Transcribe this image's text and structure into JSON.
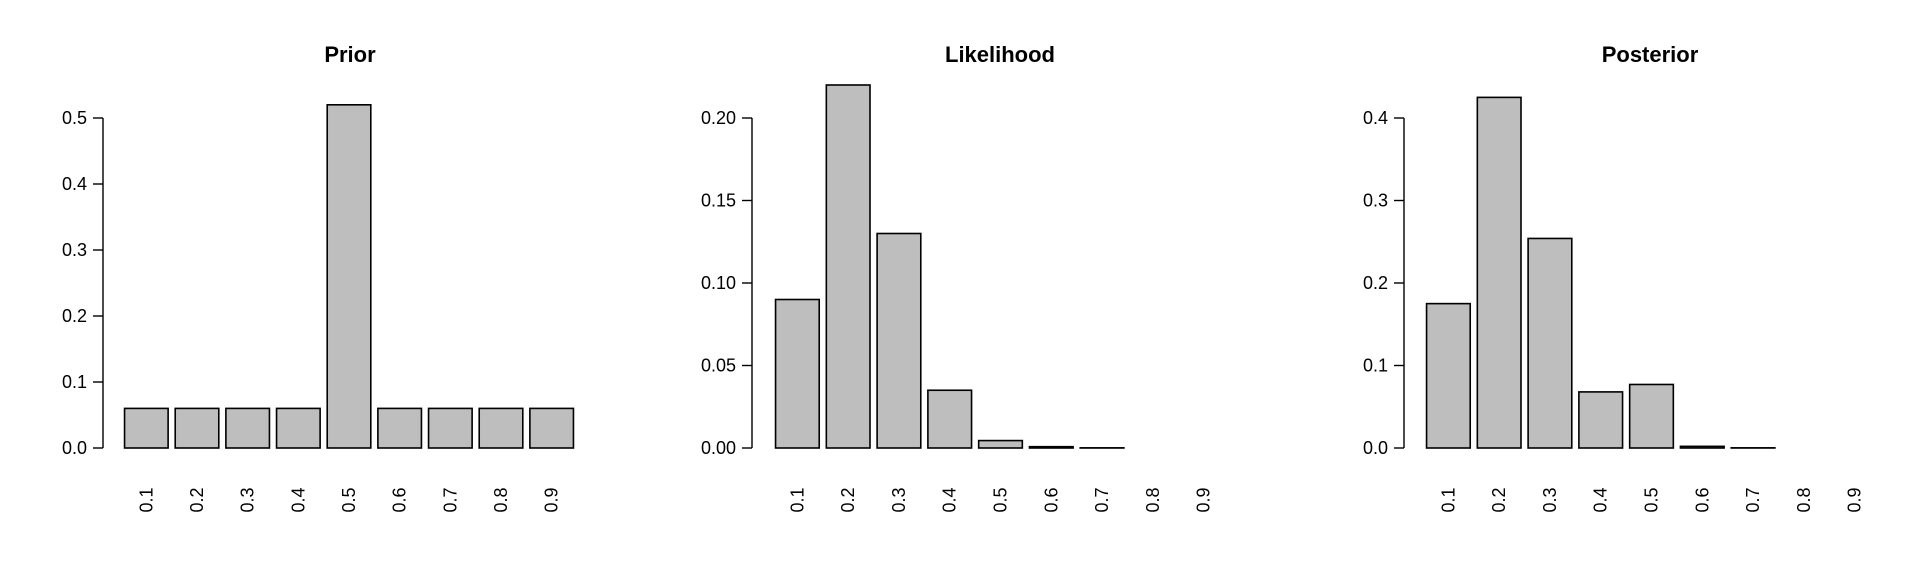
{
  "chart_data": [
    {
      "type": "bar",
      "title": "Prior",
      "categories": [
        "0.1",
        "0.2",
        "0.3",
        "0.4",
        "0.5",
        "0.6",
        "0.7",
        "0.8",
        "0.9"
      ],
      "values": [
        0.06,
        0.06,
        0.06,
        0.06,
        0.52,
        0.06,
        0.06,
        0.06,
        0.06
      ],
      "ylim": [
        0,
        0.5
      ],
      "yticks": [
        "0.0",
        "0.1",
        "0.2",
        "0.3",
        "0.4",
        "0.5"
      ],
      "bar_color": "#bebebe"
    },
    {
      "type": "bar",
      "title": "Likelihood",
      "categories": [
        "0.1",
        "0.2",
        "0.3",
        "0.4",
        "0.5",
        "0.6",
        "0.7",
        "0.8",
        "0.9"
      ],
      "values": [
        0.09,
        0.22,
        0.13,
        0.035,
        0.0045,
        0.0008,
        0.0001,
        0.0,
        0.0
      ],
      "ylim": [
        0,
        0.2
      ],
      "yticks": [
        "0.00",
        "0.05",
        "0.10",
        "0.15",
        "0.20"
      ],
      "bar_color": "#bebebe"
    },
    {
      "type": "bar",
      "title": "Posterior",
      "categories": [
        "0.1",
        "0.2",
        "0.3",
        "0.4",
        "0.5",
        "0.6",
        "0.7",
        "0.8",
        "0.9"
      ],
      "values": [
        0.175,
        0.425,
        0.254,
        0.068,
        0.077,
        0.002,
        0.0002,
        0.0,
        0.0
      ],
      "ylim": [
        0,
        0.4
      ],
      "yticks": [
        "0.0",
        "0.1",
        "0.2",
        "0.3",
        "0.4"
      ],
      "bar_color": "#bebebe"
    }
  ]
}
